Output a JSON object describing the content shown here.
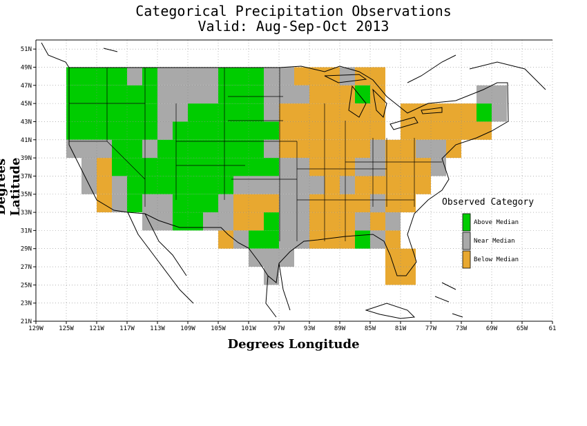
{
  "title_line1": "Categorical Precipitation Observations",
  "title_line2": "Valid: Aug-Sep-Oct 2013",
  "xlabel": "Degrees Longitude",
  "ylabel": "Degrees Latitude",
  "x_ticks": [
    "129W",
    "125W",
    "121W",
    "117W",
    "113W",
    "109W",
    "105W",
    "101W",
    "97W",
    "93W",
    "89W",
    "85W",
    "81W",
    "77W",
    "73W",
    "69W",
    "65W",
    "61"
  ],
  "x_tick_values": [
    -129,
    -125,
    -121,
    -117,
    -113,
    -109,
    -105,
    -101,
    -97,
    -93,
    -89,
    -85,
    -81,
    -77,
    -73,
    -69,
    -65,
    -61
  ],
  "y_ticks": [
    "51N",
    "49N",
    "47N",
    "45N",
    "43N",
    "41N",
    "39N",
    "37N",
    "35N",
    "33N",
    "31N",
    "29N",
    "27N",
    "25N",
    "23N",
    "21N"
  ],
  "y_tick_values": [
    51,
    49,
    47,
    45,
    43,
    41,
    39,
    37,
    35,
    33,
    31,
    29,
    27,
    25,
    23,
    21
  ],
  "legend": {
    "title": "Observed Category",
    "items": [
      {
        "label": "Above Median",
        "color": "#00cc00"
      },
      {
        "label": "Near Median",
        "color": "#a9a9a9"
      },
      {
        "label": "Below Median",
        "color": "#e8a830"
      }
    ]
  },
  "chart_data": {
    "type": "heatmap",
    "title": "Categorical Precipitation Observations",
    "subtitle": "Valid: Aug-Sep-Oct 2013",
    "xlabel": "Degrees Longitude",
    "ylabel": "Degrees Latitude",
    "xlim": [
      -129,
      -61
    ],
    "ylim": [
      21,
      52
    ],
    "grid": true,
    "legend_position": "right",
    "cell_size_deg": 2,
    "categories": {
      "A": "Above Median",
      "N": "Near Median",
      "B": "Below Median"
    },
    "rows": [
      {
        "lat": [
          47,
          49
        ],
        "cells": [
          [
            -125,
            -123,
            "A"
          ],
          [
            -123,
            -119,
            "A"
          ],
          [
            -119,
            -117,
            "A"
          ],
          [
            -117,
            -115,
            "N"
          ],
          [
            -115,
            -113,
            "A"
          ],
          [
            -113,
            -105,
            "N"
          ],
          [
            -105,
            -99,
            "A"
          ],
          [
            -99,
            -95,
            "N"
          ],
          [
            -95,
            -89,
            "B"
          ],
          [
            -89,
            -87,
            "N"
          ],
          [
            -87,
            -83,
            "B"
          ]
        ]
      },
      {
        "lat": [
          45,
          47
        ],
        "cells": [
          [
            -125,
            -113,
            "A"
          ],
          [
            -113,
            -105,
            "N"
          ],
          [
            -105,
            -99,
            "A"
          ],
          [
            -99,
            -95,
            "N"
          ],
          [
            -95,
            -93,
            "N"
          ],
          [
            -93,
            -87,
            "B"
          ],
          [
            -87,
            -85,
            "A"
          ],
          [
            -85,
            -83,
            "B"
          ],
          [
            -71,
            -67,
            "N"
          ]
        ]
      },
      {
        "lat": [
          43,
          45
        ],
        "cells": [
          [
            -125,
            -113,
            "A"
          ],
          [
            -113,
            -109,
            "N"
          ],
          [
            -109,
            -99,
            "A"
          ],
          [
            -99,
            -97,
            "N"
          ],
          [
            -97,
            -83,
            "B"
          ],
          [
            -81,
            -71,
            "B"
          ],
          [
            -71,
            -69,
            "A"
          ],
          [
            -69,
            -67,
            "N"
          ]
        ]
      },
      {
        "lat": [
          41,
          43
        ],
        "cells": [
          [
            -125,
            -113,
            "A"
          ],
          [
            -113,
            -111,
            "N"
          ],
          [
            -111,
            -97,
            "A"
          ],
          [
            -97,
            -83,
            "B"
          ],
          [
            -81,
            -69,
            "B"
          ]
        ]
      },
      {
        "lat": [
          39,
          41
        ],
        "cells": [
          [
            -125,
            -119,
            "N"
          ],
          [
            -119,
            -115,
            "A"
          ],
          [
            -115,
            -113,
            "N"
          ],
          [
            -113,
            -99,
            "A"
          ],
          [
            -99,
            -97,
            "N"
          ],
          [
            -97,
            -85,
            "B"
          ],
          [
            -85,
            -83,
            "N"
          ],
          [
            -83,
            -79,
            "B"
          ],
          [
            -79,
            -75,
            "N"
          ],
          [
            -75,
            -73,
            "B"
          ]
        ]
      },
      {
        "lat": [
          37,
          39
        ],
        "cells": [
          [
            -123,
            -121,
            "N"
          ],
          [
            -121,
            -119,
            "B"
          ],
          [
            -119,
            -103,
            "A"
          ],
          [
            -103,
            -97,
            "A"
          ],
          [
            -97,
            -93,
            "N"
          ],
          [
            -93,
            -87,
            "B"
          ],
          [
            -87,
            -83,
            "N"
          ],
          [
            -83,
            -77,
            "B"
          ],
          [
            -77,
            -75,
            "N"
          ]
        ]
      },
      {
        "lat": [
          35,
          37
        ],
        "cells": [
          [
            -123,
            -121,
            "N"
          ],
          [
            -121,
            -119,
            "B"
          ],
          [
            -119,
            -117,
            "N"
          ],
          [
            -117,
            -103,
            "A"
          ],
          [
            -103,
            -91,
            "N"
          ],
          [
            -91,
            -89,
            "B"
          ],
          [
            -89,
            -87,
            "N"
          ],
          [
            -87,
            -77,
            "B"
          ]
        ]
      },
      {
        "lat": [
          33,
          35
        ],
        "cells": [
          [
            -121,
            -119,
            "B"
          ],
          [
            -119,
            -117,
            "N"
          ],
          [
            -117,
            -115,
            "A"
          ],
          [
            -115,
            -111,
            "N"
          ],
          [
            -111,
            -105,
            "A"
          ],
          [
            -105,
            -103,
            "N"
          ],
          [
            -103,
            -97,
            "B"
          ],
          [
            -97,
            -93,
            "N"
          ],
          [
            -93,
            -85,
            "B"
          ],
          [
            -85,
            -83,
            "N"
          ],
          [
            -83,
            -79,
            "B"
          ]
        ]
      },
      {
        "lat": [
          31,
          33
        ],
        "cells": [
          [
            -115,
            -111,
            "N"
          ],
          [
            -111,
            -107,
            "A"
          ],
          [
            -107,
            -103,
            "N"
          ],
          [
            -103,
            -99,
            "B"
          ],
          [
            -99,
            -97,
            "A"
          ],
          [
            -97,
            -93,
            "N"
          ],
          [
            -93,
            -87,
            "B"
          ],
          [
            -87,
            -85,
            "N"
          ],
          [
            -85,
            -83,
            "B"
          ],
          [
            -83,
            -81,
            "N"
          ]
        ]
      },
      {
        "lat": [
          29,
          31
        ],
        "cells": [
          [
            -105,
            -103,
            "B"
          ],
          [
            -103,
            -101,
            "N"
          ],
          [
            -101,
            -97,
            "A"
          ],
          [
            -97,
            -93,
            "N"
          ],
          [
            -93,
            -87,
            "B"
          ],
          [
            -87,
            -85,
            "A"
          ],
          [
            -85,
            -83,
            "N"
          ],
          [
            -83,
            -81,
            "B"
          ]
        ]
      },
      {
        "lat": [
          27,
          29
        ],
        "cells": [
          [
            -101,
            -95,
            "N"
          ],
          [
            -83,
            -79,
            "B"
          ]
        ]
      },
      {
        "lat": [
          25,
          27
        ],
        "cells": [
          [
            -99,
            -97,
            "N"
          ],
          [
            -83,
            -79,
            "B"
          ]
        ]
      }
    ]
  }
}
